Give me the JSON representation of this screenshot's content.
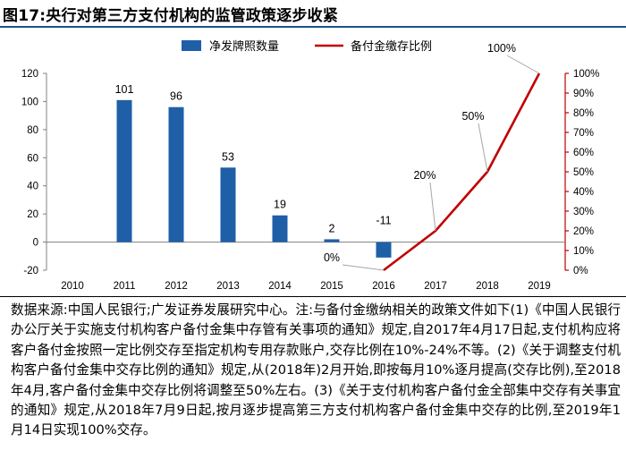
{
  "title": "图17:央行对第三方支付机构的监管政策逐步收紧",
  "chart_data": {
    "type": "bar",
    "categories": [
      "2010",
      "2011",
      "2012",
      "2013",
      "2014",
      "2015",
      "2016",
      "2017",
      "2018",
      "2019"
    ],
    "series": [
      {
        "name": "净发牌照数量",
        "type": "bar",
        "axis": "left",
        "color": "#1f5fa8",
        "values": [
          null,
          101,
          96,
          53,
          19,
          2,
          -11,
          null,
          null,
          null
        ],
        "labels": [
          null,
          "101",
          "96",
          "53",
          "19",
          "2",
          "-11",
          null,
          null,
          null
        ]
      },
      {
        "name": "备付金缴存比例",
        "type": "line",
        "axis": "right",
        "color": "#c00000",
        "values": [
          null,
          null,
          null,
          null,
          null,
          null,
          0,
          20,
          50,
          100
        ],
        "labels": [
          null,
          null,
          null,
          null,
          null,
          null,
          "0%",
          "20%",
          "50%",
          "100%"
        ]
      }
    ],
    "left_axis": {
      "ylim": [
        -20,
        120
      ],
      "ticks": [
        "-20",
        "0",
        "20",
        "40",
        "60",
        "80",
        "100",
        "120"
      ]
    },
    "right_axis": {
      "ylim": [
        0,
        100
      ],
      "ticks": [
        "0%",
        "10%",
        "20%",
        "30%",
        "40%",
        "50%",
        "60%",
        "70%",
        "80%",
        "90%",
        "100%"
      ],
      "color": "#c00000"
    },
    "legend_position": "top-center",
    "grid": false
  },
  "source_text": "数据来源:中国人民银行;广发证券发展研究中心。注:与备付金缴纳相关的政策文件如下(1)《中国人民银行办公厅关于实施支付机构客户备付金集中存管有关事项的通知》规定,自2017年4月17日起,支付机构应将客户备付金按照一定比例交存至指定机构专用存款账户,交存比例在10%-24%不等。(2)《关于调整支付机构客户备付金集中交存比例的通知》规定,从(2018年)2月开始,即按每月10%逐月提高(交存比例),至2018年4月,客户备付金集中交存比例将调整至50%左右。(3)《关于支付机构客户备付金全部集中交存有关事宜的通知》规定,从2018年7月9日起,按月逐步提高第三方支付机构客户备付金集中交存的比例,至2019年1月14日实现100%交存。"
}
